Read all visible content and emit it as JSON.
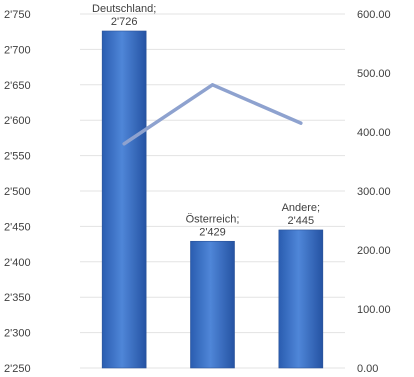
{
  "chart_data": {
    "type": "bar",
    "categories": [
      "Deutschland",
      "Österreich",
      "Andere"
    ],
    "series": [
      {
        "type": "bar",
        "axis": "left",
        "values": [
          2726,
          2429,
          2445
        ],
        "data_labels": [
          [
            "Deutschland;",
            "2'726"
          ],
          [
            "Österreich;",
            "2'429"
          ],
          [
            "Andere;",
            "2'445"
          ]
        ],
        "color": "#3a6fc4"
      },
      {
        "type": "line",
        "axis": "right",
        "values": [
          380,
          480,
          415
        ],
        "color": "#8ea2cf"
      }
    ],
    "left_axis": {
      "ylim": [
        2250,
        2750
      ],
      "ticks": [
        2750,
        2700,
        2650,
        2600,
        2550,
        2500,
        2450,
        2400,
        2350,
        2300,
        2250
      ],
      "tick_labels": [
        "2'750",
        "2'700",
        "2'650",
        "2'600",
        "2'550",
        "2'500",
        "2'450",
        "2'400",
        "2'350",
        "2'300",
        "2'250"
      ]
    },
    "right_axis": {
      "ylim": [
        0,
        600
      ],
      "ticks": [
        600,
        500,
        400,
        300,
        200,
        100,
        0
      ],
      "tick_labels": [
        "600.00",
        "500.00",
        "400.00",
        "300.00",
        "200.00",
        "100.00",
        "0.00"
      ]
    },
    "grid": true,
    "legend": "none"
  }
}
